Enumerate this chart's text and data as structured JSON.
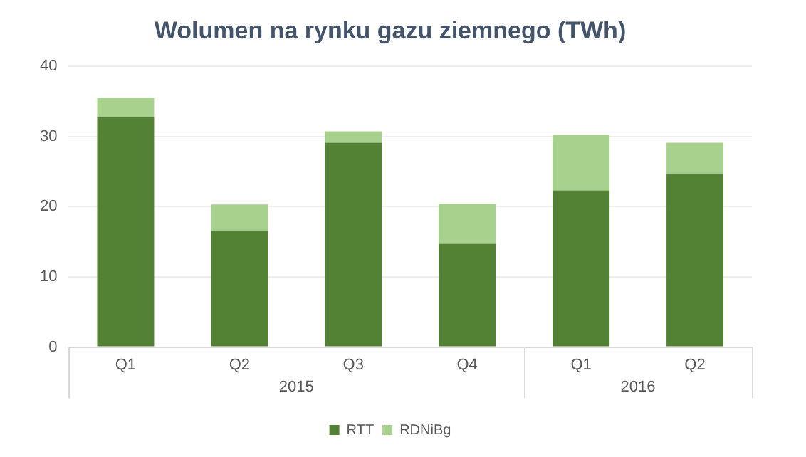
{
  "chart_data": {
    "type": "bar",
    "title": "Wolumen na rynku gazu ziemnego (TWh)",
    "categories": [
      "Q1",
      "Q2",
      "Q3",
      "Q4",
      "Q1",
      "Q2"
    ],
    "annotations": [
      "2015",
      "2016"
    ],
    "stacked": true,
    "series": [
      {
        "name": "RTT",
        "color": "#548235",
        "values": [
          32.7,
          16.6,
          29.1,
          14.7,
          22.3,
          24.7
        ]
      },
      {
        "name": "RDNiBg",
        "color": "#a9d18e",
        "values": [
          2.8,
          3.7,
          1.6,
          5.7,
          7.9,
          4.4
        ]
      }
    ],
    "ylim": [
      0,
      40
    ],
    "yticks": [
      0,
      10,
      20,
      30,
      40
    ],
    "grid": "y",
    "legend": "bottom"
  }
}
